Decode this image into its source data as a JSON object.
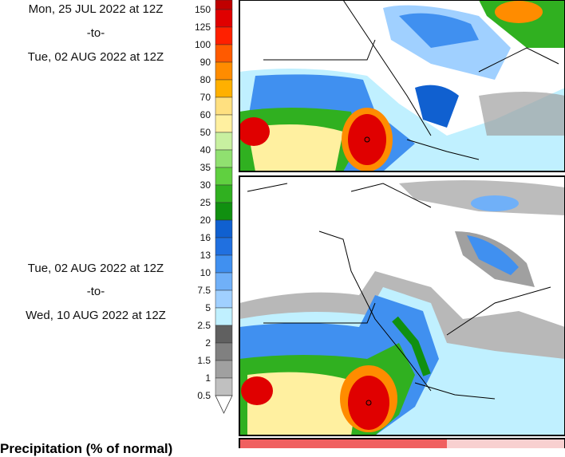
{
  "period_1": {
    "start": "Mon, 25 JUL 2022 at 12Z",
    "to": "-to-",
    "end": "Tue, 02 AUG 2022 at 12Z"
  },
  "period_2": {
    "start": "Tue, 02 AUG 2022 at 12Z",
    "to": "-to-",
    "end": "Wed, 10 AUG 2022 at 12Z"
  },
  "legend": {
    "labels": [
      "150",
      "125",
      "100",
      "90",
      "80",
      "70",
      "60",
      "50",
      "40",
      "35",
      "30",
      "25",
      "20",
      "16",
      "13",
      "10",
      "7.5",
      "5",
      "2.5",
      "2",
      "1.5",
      "1",
      "0.5"
    ]
  },
  "footer": {
    "title": "Precipitation (% of normal)"
  }
}
